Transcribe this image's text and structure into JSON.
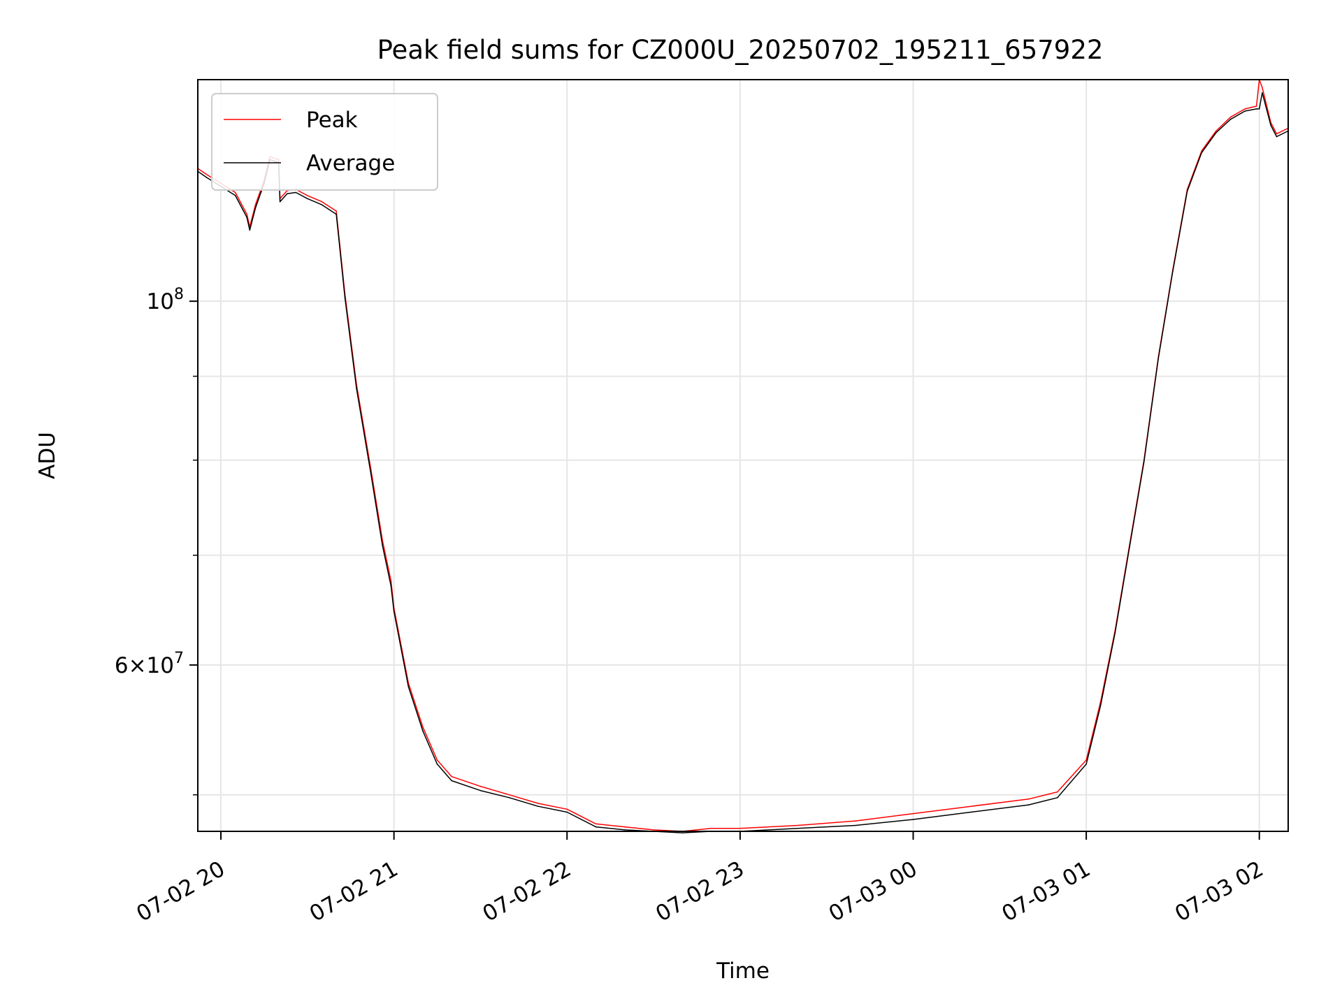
{
  "chart_data": {
    "type": "line",
    "title": "Peak field sums for CZ000U_20250702_195211_657922",
    "xlabel": "Time",
    "ylabel": "ADU",
    "x_type": "datetime",
    "xlim": [
      "2025-07-02 19:52",
      "2025-07-03 02:10"
    ],
    "x_ticks": [
      {
        "value": "2025-07-02 20:00",
        "label": "07-02 20"
      },
      {
        "value": "2025-07-02 21:00",
        "label": "07-02 21"
      },
      {
        "value": "2025-07-02 22:00",
        "label": "07-02 22"
      },
      {
        "value": "2025-07-02 23:00",
        "label": "07-02 23"
      },
      {
        "value": "2025-07-03 00:00",
        "label": "07-03 00"
      },
      {
        "value": "2025-07-03 01:00",
        "label": "07-03 01"
      },
      {
        "value": "2025-07-03 02:00",
        "label": "07-03 02"
      }
    ],
    "y_scale": "log",
    "ylim": [
      47500000,
      136500000
    ],
    "y_ticks_major": [
      {
        "value": 100000000,
        "base": "10",
        "exp": "8",
        "mant": ""
      },
      {
        "value": 60000000,
        "base": "10",
        "exp": "7",
        "mant": "6"
      }
    ],
    "y_ticks_minor": [
      50000000,
      70000000,
      80000000,
      90000000
    ],
    "grid": true,
    "legend_position": "upper-left",
    "series": [
      {
        "name": "Peak",
        "color": "#ff0000",
        "x": [
          "2025-07-02 19:52",
          "2025-07-02 19:55",
          "2025-07-02 20:00",
          "2025-07-02 20:05",
          "2025-07-02 20:09",
          "2025-07-02 20:10",
          "2025-07-02 20:12",
          "2025-07-02 20:15",
          "2025-07-02 20:17",
          "2025-07-02 20:20",
          "2025-07-02 20:20:30",
          "2025-07-02 20:23",
          "2025-07-02 20:26",
          "2025-07-02 20:30",
          "2025-07-02 20:35",
          "2025-07-02 20:40",
          "2025-07-02 20:43",
          "2025-07-02 20:47",
          "2025-07-02 20:52",
          "2025-07-02 20:56",
          "2025-07-02 20:59",
          "2025-07-02 21:00",
          "2025-07-02 21:05",
          "2025-07-02 21:10",
          "2025-07-02 21:15",
          "2025-07-02 21:20",
          "2025-07-02 21:30",
          "2025-07-02 21:40",
          "2025-07-02 21:50",
          "2025-07-02 22:00",
          "2025-07-02 22:10",
          "2025-07-02 22:20",
          "2025-07-02 22:30",
          "2025-07-02 22:40",
          "2025-07-02 22:50",
          "2025-07-02 23:00",
          "2025-07-02 23:20",
          "2025-07-02 23:40",
          "2025-07-03 00:00",
          "2025-07-03 00:20",
          "2025-07-03 00:40",
          "2025-07-03 00:50",
          "2025-07-03 01:00",
          "2025-07-03 01:05",
          "2025-07-03 01:10",
          "2025-07-03 01:15",
          "2025-07-03 01:20",
          "2025-07-03 01:25",
          "2025-07-03 01:30",
          "2025-07-03 01:35",
          "2025-07-03 01:40",
          "2025-07-03 01:45",
          "2025-07-03 01:50",
          "2025-07-03 01:55",
          "2025-07-03 01:59",
          "2025-07-03 02:00",
          "2025-07-03 02:01",
          "2025-07-03 02:04",
          "2025-07-03 02:06",
          "2025-07-03 02:10"
        ],
        "values": [
          120500000,
          119500000,
          118000000,
          116500000,
          113000000,
          111000000,
          114500000,
          118500000,
          122500000,
          122000000,
          115500000,
          116800000,
          117000000,
          116000000,
          115000000,
          113500000,
          101000000,
          89000000,
          79000000,
          71500000,
          67500000,
          65000000,
          58500000,
          55000000,
          52500000,
          51300000,
          50600000,
          50000000,
          49400000,
          49000000,
          48000000,
          47800000,
          47600000,
          47500000,
          47700000,
          47700000,
          47900000,
          48200000,
          48700000,
          49200000,
          49700000,
          50200000,
          52500000,
          57000000,
          63000000,
          71000000,
          80000000,
          92500000,
          104500000,
          117000000,
          123500000,
          127000000,
          129500000,
          131000000,
          131500000,
          136500000,
          135000000,
          128500000,
          126500000,
          127500000
        ]
      },
      {
        "name": "Average",
        "color": "#000000",
        "x": [
          "2025-07-02 19:52",
          "2025-07-02 19:55",
          "2025-07-02 20:00",
          "2025-07-02 20:05",
          "2025-07-02 20:09",
          "2025-07-02 20:10",
          "2025-07-02 20:12",
          "2025-07-02 20:15",
          "2025-07-02 20:17",
          "2025-07-02 20:20",
          "2025-07-02 20:20:30",
          "2025-07-02 20:23",
          "2025-07-02 20:26",
          "2025-07-02 20:30",
          "2025-07-02 20:35",
          "2025-07-02 20:40",
          "2025-07-02 20:43",
          "2025-07-02 20:47",
          "2025-07-02 20:52",
          "2025-07-02 20:56",
          "2025-07-02 20:59",
          "2025-07-02 21:00",
          "2025-07-02 21:05",
          "2025-07-02 21:10",
          "2025-07-02 21:15",
          "2025-07-02 21:20",
          "2025-07-02 21:30",
          "2025-07-02 21:40",
          "2025-07-02 21:50",
          "2025-07-02 22:00",
          "2025-07-02 22:10",
          "2025-07-02 22:20",
          "2025-07-02 22:30",
          "2025-07-02 22:40",
          "2025-07-02 22:50",
          "2025-07-02 23:00",
          "2025-07-02 23:20",
          "2025-07-02 23:40",
          "2025-07-03 00:00",
          "2025-07-03 00:20",
          "2025-07-03 00:40",
          "2025-07-03 00:50",
          "2025-07-03 01:00",
          "2025-07-03 01:05",
          "2025-07-03 01:10",
          "2025-07-03 01:15",
          "2025-07-03 01:20",
          "2025-07-03 01:25",
          "2025-07-03 01:30",
          "2025-07-03 01:35",
          "2025-07-03 01:40",
          "2025-07-03 01:45",
          "2025-07-03 01:50",
          "2025-07-03 01:55",
          "2025-07-03 01:59",
          "2025-07-03 02:00",
          "2025-07-03 02:01",
          "2025-07-03 02:04",
          "2025-07-03 02:06",
          "2025-07-03 02:10"
        ],
        "values": [
          120000000,
          119000000,
          117500000,
          116000000,
          112500000,
          110500000,
          114000000,
          118000000,
          122000000,
          121500000,
          115000000,
          116300000,
          116500000,
          115500000,
          114500000,
          113000000,
          100500000,
          88500000,
          78500000,
          71000000,
          67000000,
          64700000,
          58200000,
          54700000,
          52200000,
          51000000,
          50300000,
          49800000,
          49200000,
          48800000,
          47800000,
          47600000,
          47500000,
          47400000,
          47500000,
          47500000,
          47700000,
          47900000,
          48300000,
          48800000,
          49300000,
          49800000,
          52200000,
          56700000,
          62800000,
          70800000,
          79800000,
          92300000,
          104300000,
          116700000,
          123200000,
          126700000,
          129100000,
          130600000,
          131000000,
          131000000,
          134000000,
          128000000,
          126000000,
          127000000
        ]
      }
    ]
  }
}
